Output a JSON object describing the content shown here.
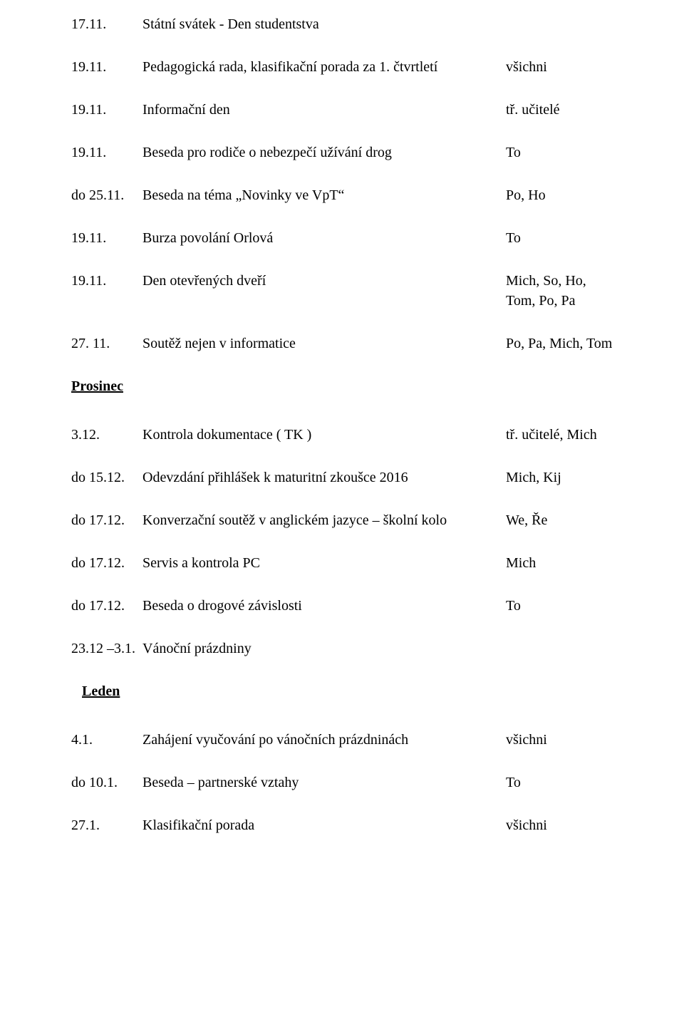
{
  "rows": [
    {
      "date": "17.11.",
      "desc": "Státní svátek - Den studentstva",
      "who": ""
    },
    {
      "date": "19.11.",
      "desc": "Pedagogická rada, klasifikační porada za 1. čtvrtletí",
      "who": "všichni"
    },
    {
      "date": "19.11.",
      "desc": "Informační den",
      "who": "tř. učitelé"
    },
    {
      "date": "19.11.",
      "desc": "Beseda pro rodiče o nebezpečí užívání drog",
      "who": "To"
    },
    {
      "date": "do 25.11.",
      "desc": "Beseda na téma „Novinky ve VpT“",
      "who": "Po, Ho"
    },
    {
      "date": "19.11.",
      "desc": "Burza povolání Orlová",
      "who": "To"
    },
    {
      "date": "19.11.",
      "desc": "Den otevřených dveří",
      "who": "Mich, So, Ho,",
      "who2": "Tom, Po, Pa"
    },
    {
      "date": "27. 11.",
      "desc": "Soutěž nejen v informatice",
      "who": "Po, Pa, Mich, Tom"
    }
  ],
  "section1": "Prosinec",
  "rows2": [
    {
      "date": "3.12.",
      "desc": "Kontrola dokumentace ( TK )",
      "who": "tř. učitelé, Mich"
    },
    {
      "date": "do 15.12.",
      "desc": "Odevzdání přihlášek k maturitní zkoušce 2016",
      "who": "Mich, Kij"
    },
    {
      "date": "do 17.12.",
      "desc": "Konverzační soutěž v anglickém jazyce – školní kolo",
      "who": "We, Ře"
    },
    {
      "date": "do 17.12.",
      "desc": "Servis a kontrola PC",
      "who": "Mich"
    },
    {
      "date": "do 17.12.",
      "desc": "Beseda o drogové závislosti",
      "who": "To"
    },
    {
      "date": "23.12 –3.1.",
      "desc": "Vánoční prázdniny",
      "who": ""
    }
  ],
  "section2": "Leden",
  "rows3": [
    {
      "date": "4.1.",
      "desc": "Zahájení vyučování po vánočních prázdninách",
      "who": "všichni"
    },
    {
      "date": "do 10.1.",
      "desc": "Beseda – partnerské vztahy",
      "who": "To"
    },
    {
      "date": "27.1.",
      "desc": "Klasifikační porada",
      "who": "všichni"
    }
  ]
}
